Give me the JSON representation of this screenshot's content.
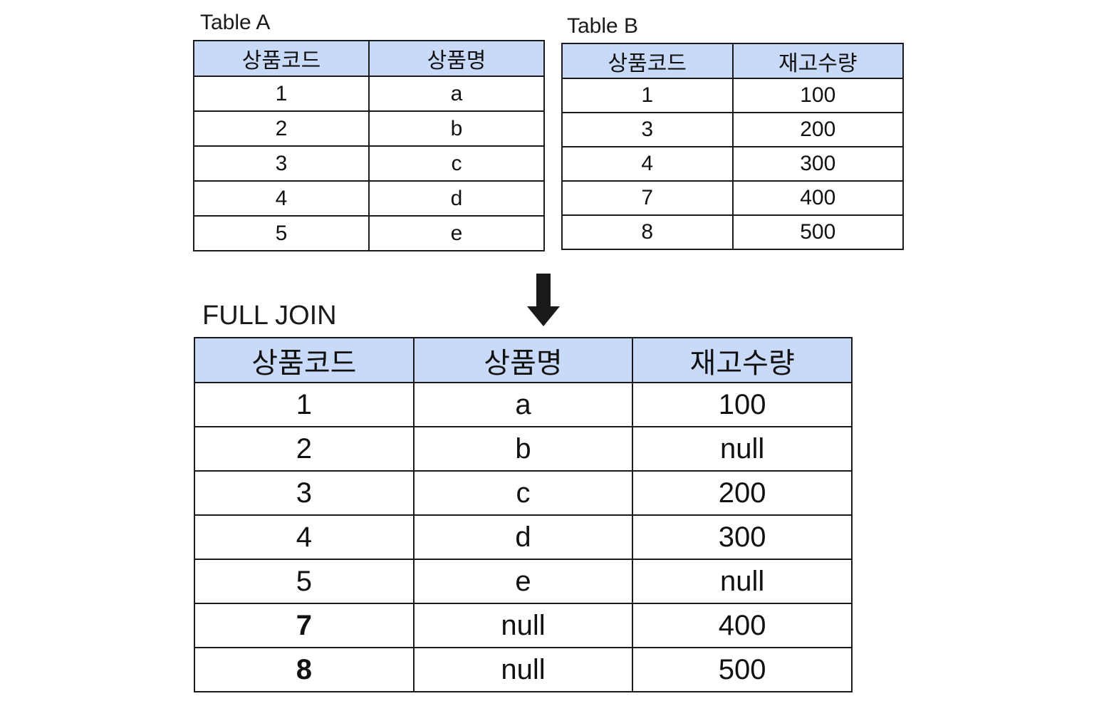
{
  "table_a": {
    "caption": "Table A",
    "headers": [
      "상품코드",
      "상품명"
    ],
    "rows": [
      [
        "1",
        "a"
      ],
      [
        "2",
        "b"
      ],
      [
        "3",
        "c"
      ],
      [
        "4",
        "d"
      ],
      [
        "5",
        "e"
      ]
    ]
  },
  "table_b": {
    "caption": "Table B",
    "headers": [
      "상품코드",
      "재고수량"
    ],
    "rows": [
      [
        "1",
        "100"
      ],
      [
        "3",
        "200"
      ],
      [
        "4",
        "300"
      ],
      [
        "7",
        "400"
      ],
      [
        "8",
        "500"
      ]
    ]
  },
  "arrow": {
    "icon": "down-arrow-icon",
    "color": "#1a1a1a"
  },
  "full_join": {
    "caption": "FULL JOIN",
    "headers": [
      "상품코드",
      "상품명",
      "재고수량"
    ],
    "rows": [
      [
        "1",
        "a",
        "100"
      ],
      [
        "2",
        "b",
        "null"
      ],
      [
        "3",
        "c",
        "200"
      ],
      [
        "4",
        "d",
        "300"
      ],
      [
        "5",
        "e",
        "null"
      ],
      [
        "7",
        "null",
        "400"
      ],
      [
        "8",
        "null",
        "500"
      ]
    ],
    "bold_key_rows": [
      5,
      6
    ]
  },
  "colors": {
    "header_fill": "#c9daf8",
    "border": "#1a1a1a"
  }
}
